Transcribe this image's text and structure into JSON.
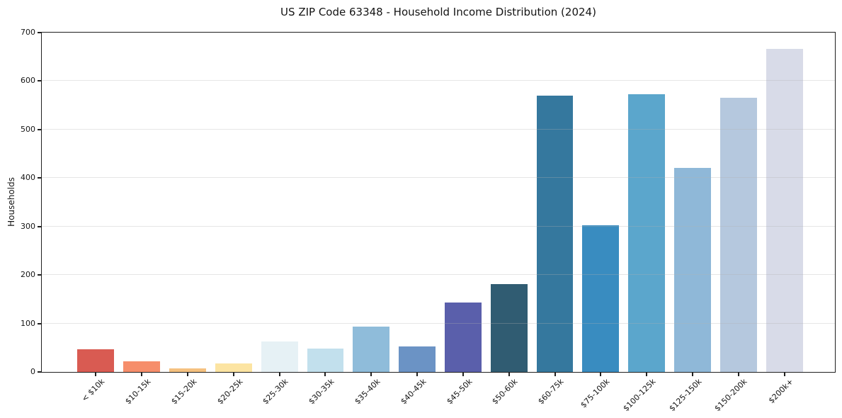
{
  "chart_data": {
    "type": "bar",
    "title": "US ZIP Code 63348 - Household Income Distribution (2024)",
    "xlabel": "",
    "ylabel": "Households",
    "categories": [
      "< $10k",
      "$10-15k",
      "$15-20k",
      "$20-25k",
      "$25-30k",
      "$30-35k",
      "$35-40k",
      "$40-45k",
      "$45-50k",
      "$50-60k",
      "$60-75k",
      "$75-100k",
      "$100-125k",
      "$125-150k",
      "$150-200k",
      "$200k+"
    ],
    "values": [
      47,
      22,
      8,
      18,
      63,
      48,
      93,
      53,
      143,
      181,
      570,
      302,
      573,
      421,
      566,
      667
    ],
    "bar_colors": [
      "#d95b52",
      "#f68e6b",
      "#f5c180",
      "#fce4a2",
      "#e6f1f5",
      "#c2e0ed",
      "#8fbcda",
      "#6b93c5",
      "#5a5fab",
      "#305c72",
      "#35789e",
      "#398cc0",
      "#5ba6cc",
      "#8fb8d8",
      "#b5c8de",
      "#d8dbe8"
    ],
    "ylim": [
      0,
      700
    ],
    "yticks": [
      0,
      100,
      200,
      300,
      400,
      500,
      600,
      700
    ],
    "grid": "horizontal",
    "legend": "none",
    "colors": {
      "background": "#ffffff",
      "spine": "#1f1f1f",
      "gridline": "#b0b0b0",
      "text": "#141414"
    }
  }
}
